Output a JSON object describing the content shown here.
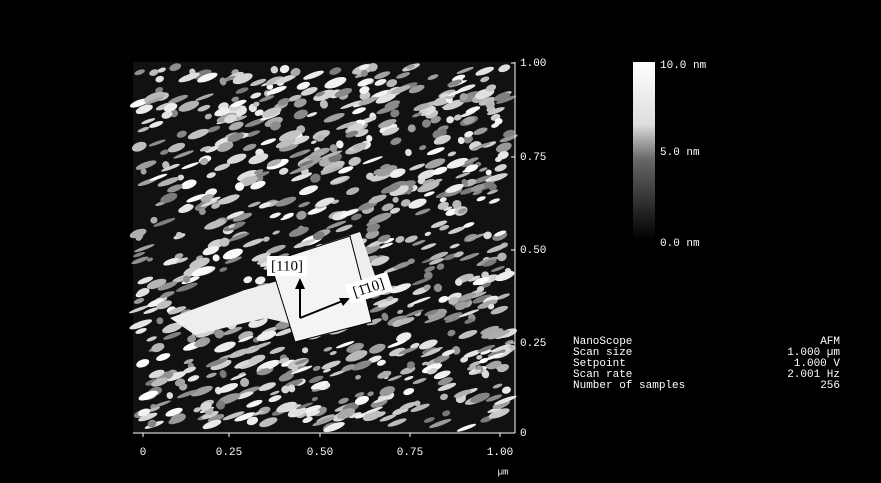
{
  "image": {
    "y_axis_labels": [
      "1.00",
      "0.75",
      "0.50",
      "0.25",
      "0"
    ],
    "x_axis_labels": [
      "0",
      "0.25",
      "0.50",
      "0.75",
      "1.00"
    ],
    "x_axis_unit": "µm",
    "annotations": [
      "[110]",
      "[1̄10]"
    ]
  },
  "color_scale": {
    "labels": [
      "10.0 nm",
      "5.0 nm",
      "0.0 nm"
    ]
  },
  "info_panel": {
    "rows": [
      [
        "NanoScope",
        "AFM"
      ],
      [
        "Scan size",
        "1.000 µm"
      ],
      [
        "Setpoint",
        "1.000 V"
      ],
      [
        "Scan rate",
        "2.001 Hz"
      ],
      [
        "Number of samples",
        "256"
      ]
    ]
  }
}
